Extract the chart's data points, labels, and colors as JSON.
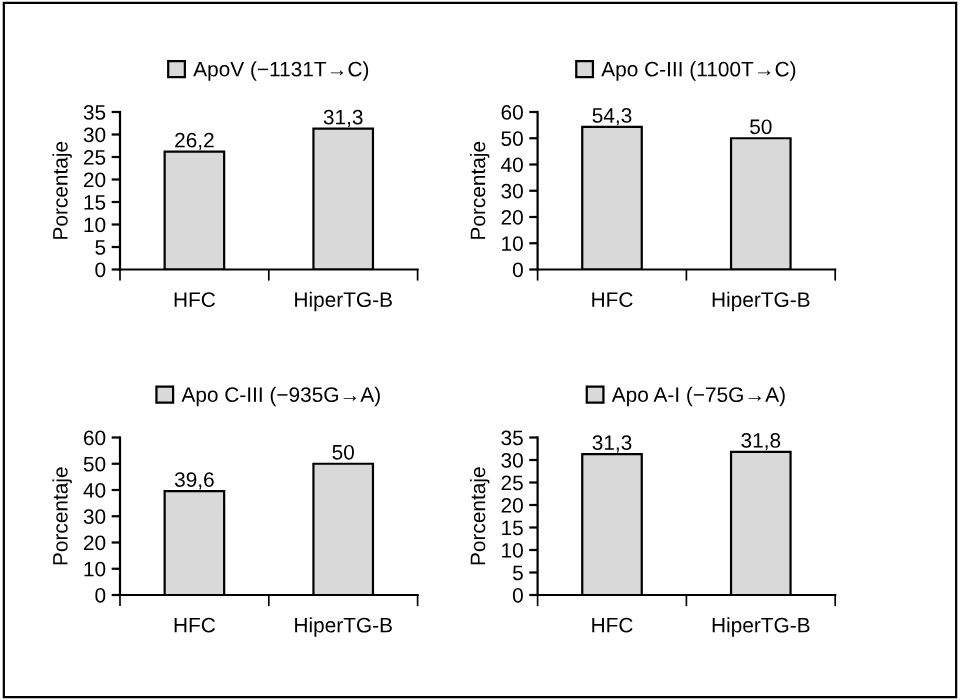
{
  "chart_data": [
    {
      "type": "bar",
      "categories": [
        "HFC",
        "HiperTG-B"
      ],
      "ylabel": "Porcentaje",
      "legend": "top",
      "ylim": [
        0,
        35
      ],
      "yticks": [
        0,
        5,
        10,
        15,
        20,
        25,
        30,
        35
      ],
      "series": [
        {
          "name": "ApoV (−1131T→C)",
          "color": "#d9d9d9",
          "values": [
            26.2,
            31.3
          ],
          "value_labels": [
            "26,2",
            "31,3"
          ]
        }
      ]
    },
    {
      "type": "bar",
      "categories": [
        "HFC",
        "HiperTG-B"
      ],
      "ylabel": "Porcentaje",
      "legend": "top",
      "ylim": [
        0,
        60
      ],
      "yticks": [
        0,
        10,
        20,
        30,
        40,
        50,
        60
      ],
      "series": [
        {
          "name": "Apo C-III (1100T→C)",
          "color": "#d9d9d9",
          "values": [
            54.3,
            50
          ],
          "value_labels": [
            "54,3",
            "50"
          ]
        }
      ]
    },
    {
      "type": "bar",
      "categories": [
        "HFC",
        "HiperTG-B"
      ],
      "ylabel": "Porcentaje",
      "legend": "top",
      "ylim": [
        0,
        60
      ],
      "yticks": [
        0,
        10,
        20,
        30,
        40,
        50,
        60
      ],
      "series": [
        {
          "name": "Apo C-III (−935G→A)",
          "color": "#d9d9d9",
          "values": [
            39.6,
            50
          ],
          "value_labels": [
            "39,6",
            "50"
          ]
        }
      ]
    },
    {
      "type": "bar",
      "categories": [
        "HFC",
        "HiperTG-B"
      ],
      "ylabel": "Porcentaje",
      "legend": "top",
      "ylim": [
        0,
        35
      ],
      "yticks": [
        0,
        5,
        10,
        15,
        20,
        25,
        30,
        35
      ],
      "series": [
        {
          "name": "Apo A-I (−75G→A)",
          "color": "#d9d9d9",
          "values": [
            31.3,
            31.8
          ],
          "value_labels": [
            "31,3",
            "31,8"
          ]
        }
      ]
    }
  ]
}
